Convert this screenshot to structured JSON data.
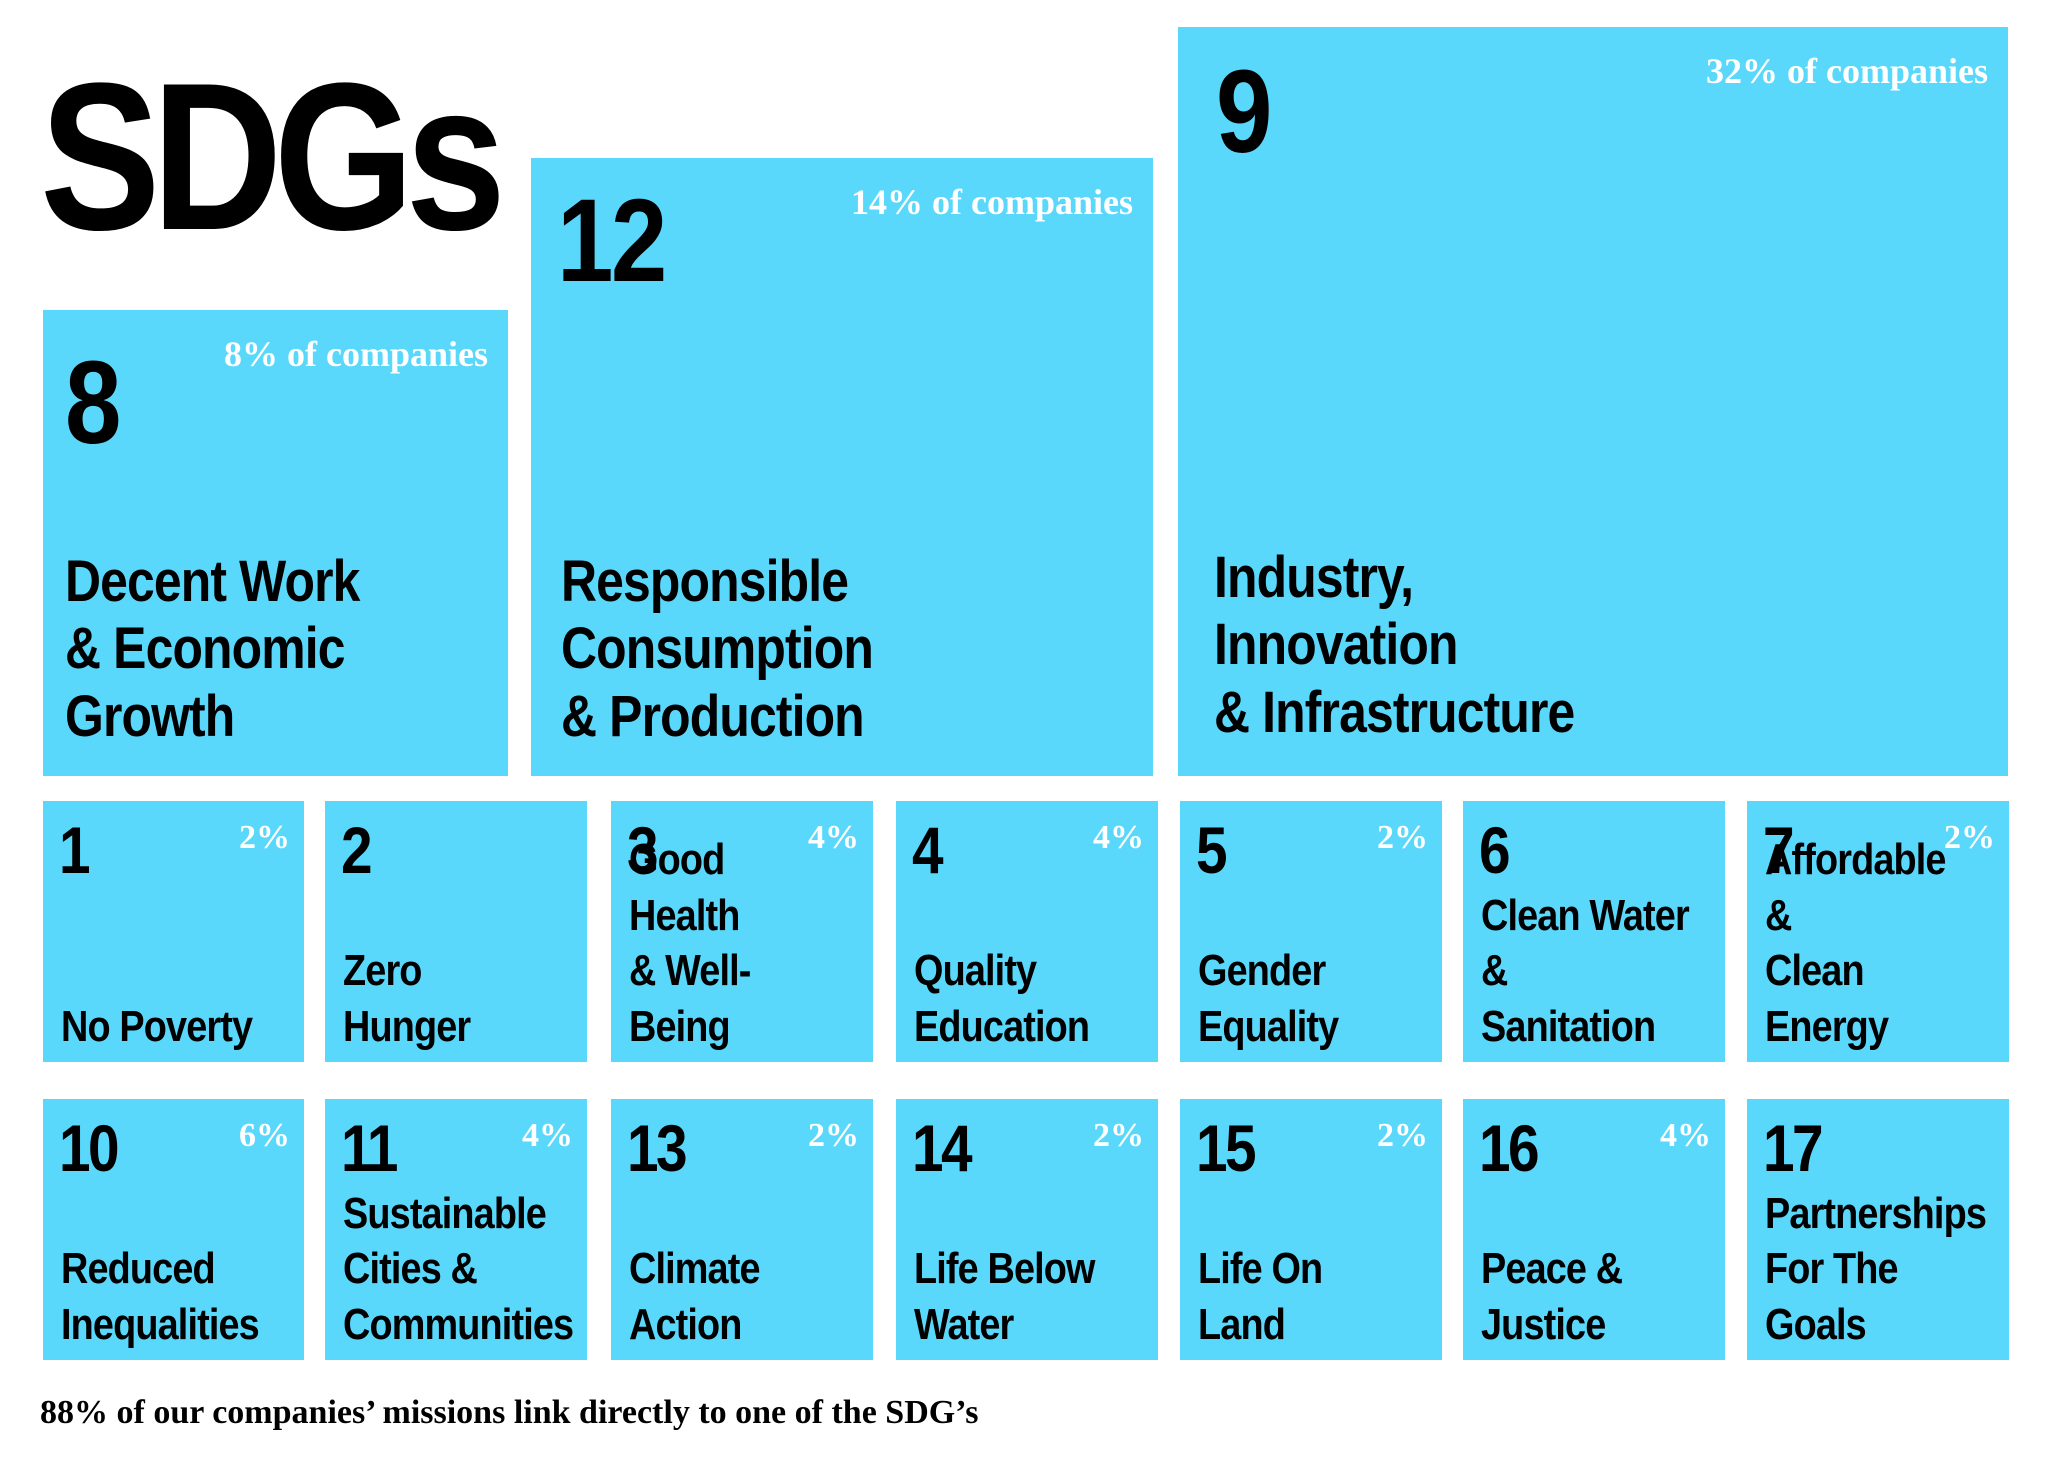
{
  "title": "SDGs",
  "footnote": "88% of our companies’ missions link directly to one of the SDG’s",
  "colors": {
    "tile": "#5ad8fc",
    "number": "#000000",
    "percent": "#ffffff",
    "background": "#ffffff"
  },
  "chart_data": {
    "type": "table",
    "title": "SDGs",
    "unit": "% of companies",
    "goals": [
      {
        "number": "8",
        "name": "Decent Work\n& Economic\nGrowth",
        "percent_label": "8% of companies",
        "value": 8
      },
      {
        "number": "12",
        "name": "Responsible\nConsumption\n& Production",
        "percent_label": "14% of companies",
        "value": 14
      },
      {
        "number": "9",
        "name": "Industry,\nInnovation\n& Infrastructure",
        "percent_label": "32% of companies",
        "value": 32
      },
      {
        "number": "1",
        "name": "No Poverty",
        "percent_label": "2%",
        "value": 2
      },
      {
        "number": "2",
        "name": "Zero Hunger",
        "percent_label": "",
        "value": null
      },
      {
        "number": "3",
        "name": "Good Health\n& Well-Being",
        "percent_label": "4%",
        "value": 4
      },
      {
        "number": "4",
        "name": "Quality\nEducation",
        "percent_label": "4%",
        "value": 4
      },
      {
        "number": "5",
        "name": "Gender\nEquality",
        "percent_label": "2%",
        "value": 2
      },
      {
        "number": "6",
        "name": "Clean Water\n& Sanitation",
        "percent_label": "",
        "value": null
      },
      {
        "number": "7",
        "name": "Affordable &\nClean Energy",
        "percent_label": "2%",
        "value": 2
      },
      {
        "number": "10",
        "name": "Reduced\nInequalities",
        "percent_label": "6%",
        "value": 6
      },
      {
        "number": "11",
        "name": "Sustainable\nCities &\nCommunities",
        "percent_label": "4%",
        "value": 4
      },
      {
        "number": "13",
        "name": "Climate\nAction",
        "percent_label": "2%",
        "value": 2
      },
      {
        "number": "14",
        "name": "Life Below\nWater",
        "percent_label": "2%",
        "value": 2
      },
      {
        "number": "15",
        "name": "Life On\nLand",
        "percent_label": "2%",
        "value": 2
      },
      {
        "number": "16",
        "name": "Peace &\nJustice",
        "percent_label": "4%",
        "value": 4
      },
      {
        "number": "17",
        "name": "Partnerships\nFor The Goals",
        "percent_label": "",
        "value": null
      }
    ]
  }
}
